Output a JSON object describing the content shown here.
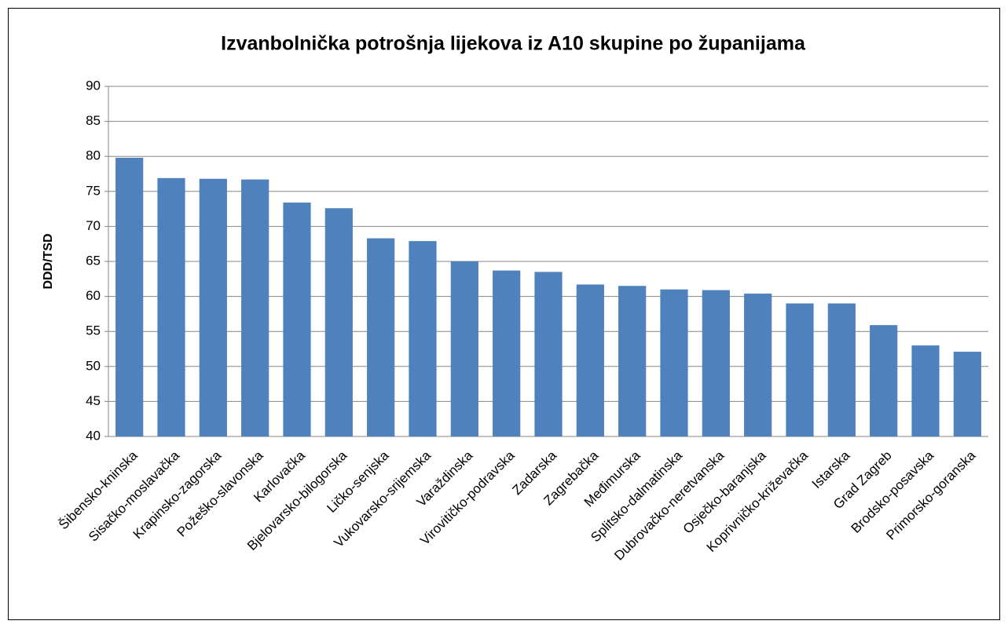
{
  "chart_data": {
    "type": "bar",
    "title": "Izvanbolnička potrošnja lijekova iz A10 skupine po županijama",
    "y_label": "DDD/TSD",
    "categories": [
      "Šibensko-kninska",
      "Sisačko-moslavačka",
      "Krapinsko-zagorska",
      "Požeško-slavonska",
      "Karlovačka",
      "Bjelovarsko-bilogorska",
      "Ličko-senjska",
      "Vukovarsko-srijemska",
      "Varaždinska",
      "Virovitičko-podravska",
      "Zadarska",
      "Zagrebačka",
      "Međimurska",
      "Splitsko-dalmatinska",
      "Dubrovačko-neretvanska",
      "Osječko-baranjska",
      "Koprivničko-križevačka",
      "Istarska",
      "Grad Zagreb",
      "Brodsko-posavska",
      "Primorsko-goranska"
    ],
    "values": [
      79.8,
      76.9,
      76.8,
      76.7,
      73.4,
      72.6,
      68.3,
      67.9,
      65.0,
      63.7,
      63.5,
      61.7,
      61.5,
      61.0,
      60.9,
      60.4,
      59.0,
      59.0,
      55.9,
      53.0,
      52.1
    ],
    "color": "#4f81bd",
    "ylim": [
      40,
      90
    ],
    "yticks": [
      40,
      45,
      50,
      55,
      60,
      65,
      70,
      75,
      80,
      85,
      90
    ],
    "grid": true
  }
}
